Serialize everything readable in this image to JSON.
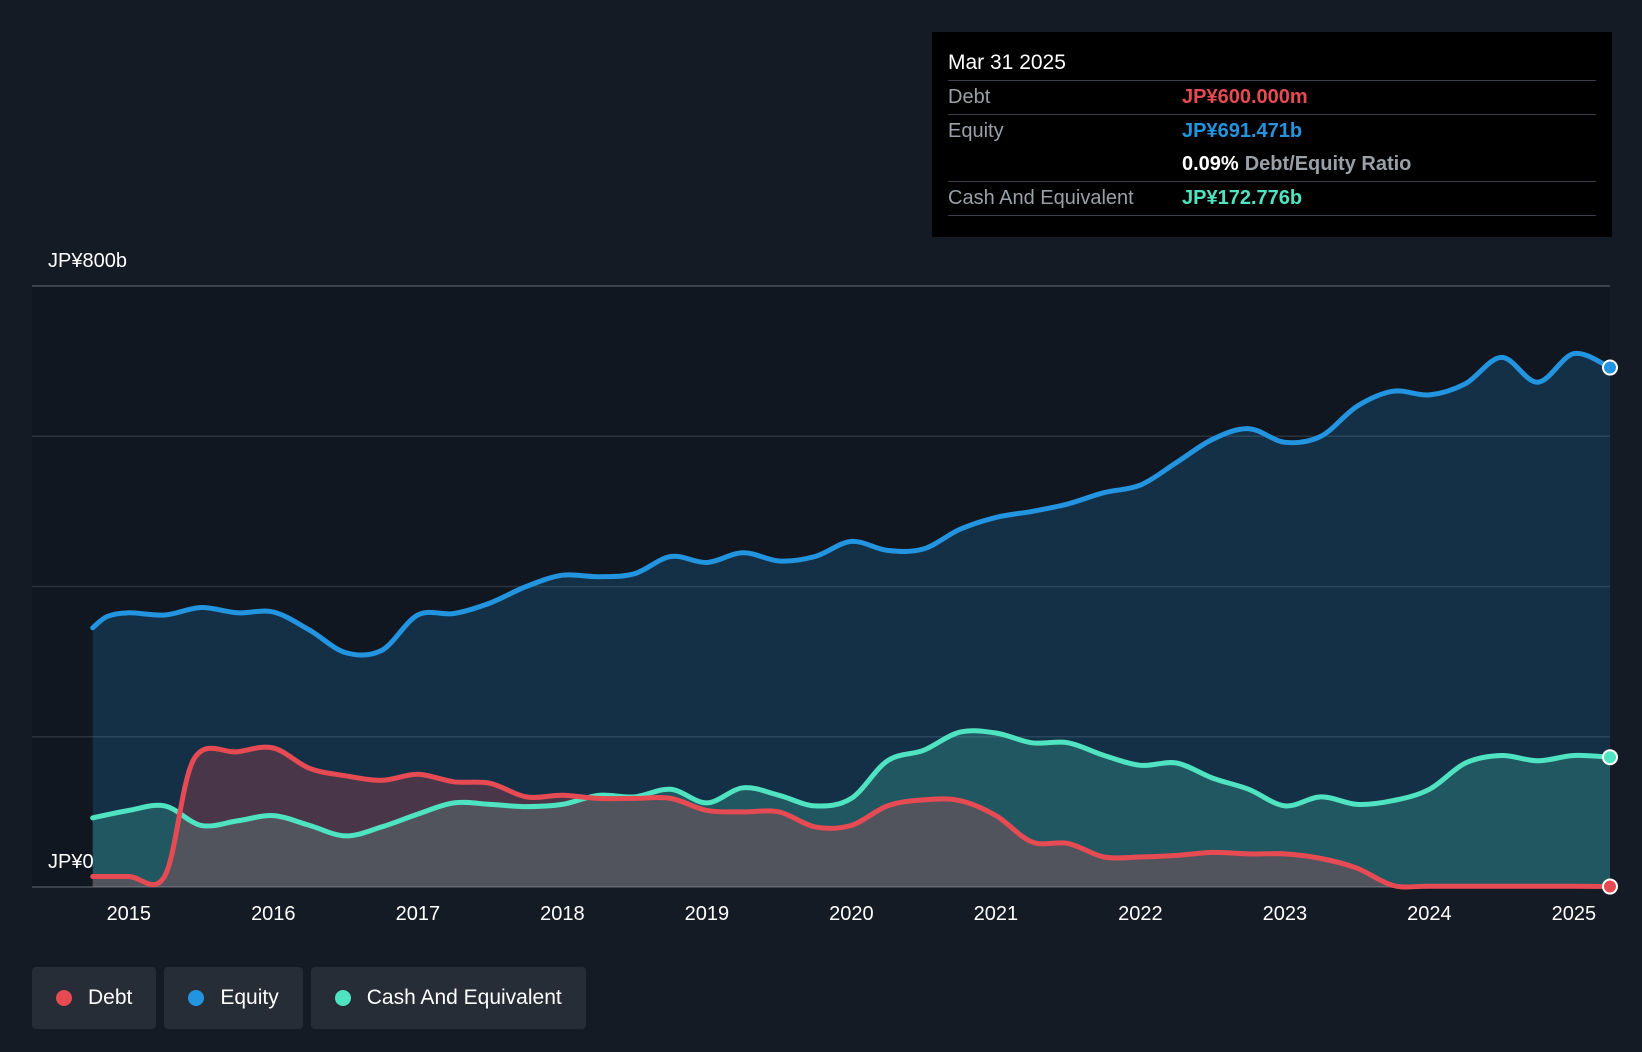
{
  "chart_data": {
    "type": "area",
    "title": "",
    "y_axis": {
      "top_label": "JP¥800b",
      "bottom_label": "JP¥0",
      "min": 0,
      "max": 800,
      "unit": "JP¥ billions"
    },
    "x_ticks": [
      "2015",
      "2016",
      "2017",
      "2018",
      "2019",
      "2020",
      "2021",
      "2022",
      "2023",
      "2024",
      "2025"
    ],
    "x_range": [
      2014.33,
      2025.25
    ],
    "series": [
      {
        "name": "Equity",
        "color": "#2394df",
        "points": [
          [
            2014.75,
            345
          ],
          [
            2014.85,
            360
          ],
          [
            2015.0,
            365
          ],
          [
            2015.25,
            362
          ],
          [
            2015.5,
            372
          ],
          [
            2015.75,
            365
          ],
          [
            2016.0,
            366
          ],
          [
            2016.25,
            342
          ],
          [
            2016.5,
            312
          ],
          [
            2016.75,
            315
          ],
          [
            2017.0,
            362
          ],
          [
            2017.25,
            364
          ],
          [
            2017.5,
            378
          ],
          [
            2017.75,
            400
          ],
          [
            2018.0,
            415
          ],
          [
            2018.25,
            413
          ],
          [
            2018.5,
            417
          ],
          [
            2018.75,
            440
          ],
          [
            2019.0,
            432
          ],
          [
            2019.25,
            445
          ],
          [
            2019.5,
            434
          ],
          [
            2019.75,
            440
          ],
          [
            2020.0,
            460
          ],
          [
            2020.25,
            448
          ],
          [
            2020.5,
            450
          ],
          [
            2020.75,
            476
          ],
          [
            2021.0,
            492
          ],
          [
            2021.25,
            500
          ],
          [
            2021.5,
            510
          ],
          [
            2021.75,
            525
          ],
          [
            2022.0,
            535
          ],
          [
            2022.25,
            565
          ],
          [
            2022.5,
            596
          ],
          [
            2022.75,
            610
          ],
          [
            2023.0,
            592
          ],
          [
            2023.25,
            600
          ],
          [
            2023.5,
            640
          ],
          [
            2023.75,
            660
          ],
          [
            2024.0,
            655
          ],
          [
            2024.25,
            670
          ],
          [
            2024.5,
            705
          ],
          [
            2024.75,
            672
          ],
          [
            2025.0,
            710
          ],
          [
            2025.25,
            691.471
          ]
        ]
      },
      {
        "name": "Cash And Equivalent",
        "color": "#50e3c2",
        "points": [
          [
            2014.75,
            92
          ],
          [
            2015.0,
            102
          ],
          [
            2015.25,
            108
          ],
          [
            2015.5,
            82
          ],
          [
            2015.75,
            88
          ],
          [
            2016.0,
            95
          ],
          [
            2016.25,
            82
          ],
          [
            2016.5,
            68
          ],
          [
            2016.75,
            80
          ],
          [
            2017.0,
            97
          ],
          [
            2017.25,
            112
          ],
          [
            2017.5,
            110
          ],
          [
            2017.75,
            107
          ],
          [
            2018.0,
            110
          ],
          [
            2018.25,
            122
          ],
          [
            2018.5,
            120
          ],
          [
            2018.75,
            130
          ],
          [
            2019.0,
            112
          ],
          [
            2019.25,
            132
          ],
          [
            2019.5,
            122
          ],
          [
            2019.75,
            108
          ],
          [
            2020.0,
            118
          ],
          [
            2020.25,
            168
          ],
          [
            2020.5,
            182
          ],
          [
            2020.75,
            206
          ],
          [
            2021.0,
            205
          ],
          [
            2021.25,
            192
          ],
          [
            2021.5,
            192
          ],
          [
            2021.75,
            175
          ],
          [
            2022.0,
            162
          ],
          [
            2022.25,
            165
          ],
          [
            2022.5,
            145
          ],
          [
            2022.75,
            130
          ],
          [
            2023.0,
            108
          ],
          [
            2023.25,
            120
          ],
          [
            2023.5,
            110
          ],
          [
            2023.75,
            115
          ],
          [
            2024.0,
            130
          ],
          [
            2024.25,
            165
          ],
          [
            2024.5,
            175
          ],
          [
            2024.75,
            168
          ],
          [
            2025.0,
            175
          ],
          [
            2025.25,
            172.776
          ]
        ]
      },
      {
        "name": "Debt",
        "color": "#e64b54",
        "points": [
          [
            2014.75,
            14
          ],
          [
            2015.0,
            14
          ],
          [
            2015.25,
            15
          ],
          [
            2015.45,
            170
          ],
          [
            2015.75,
            180
          ],
          [
            2016.0,
            185
          ],
          [
            2016.25,
            158
          ],
          [
            2016.5,
            148
          ],
          [
            2016.75,
            142
          ],
          [
            2017.0,
            150
          ],
          [
            2017.25,
            140
          ],
          [
            2017.5,
            138
          ],
          [
            2017.75,
            120
          ],
          [
            2018.0,
            122
          ],
          [
            2018.25,
            118
          ],
          [
            2018.5,
            118
          ],
          [
            2018.75,
            118
          ],
          [
            2019.0,
            102
          ],
          [
            2019.25,
            100
          ],
          [
            2019.5,
            100
          ],
          [
            2019.75,
            80
          ],
          [
            2020.0,
            82
          ],
          [
            2020.25,
            108
          ],
          [
            2020.5,
            116
          ],
          [
            2020.75,
            115
          ],
          [
            2021.0,
            95
          ],
          [
            2021.25,
            60
          ],
          [
            2021.5,
            58
          ],
          [
            2021.75,
            40
          ],
          [
            2022.0,
            40
          ],
          [
            2022.25,
            42
          ],
          [
            2022.5,
            46
          ],
          [
            2022.75,
            44
          ],
          [
            2023.0,
            44
          ],
          [
            2023.25,
            38
          ],
          [
            2023.5,
            25
          ],
          [
            2023.75,
            2
          ],
          [
            2024.0,
            1
          ],
          [
            2024.5,
            1
          ],
          [
            2025.0,
            1
          ],
          [
            2025.25,
            0.6
          ]
        ]
      }
    ],
    "legend_position": "bottom-left"
  },
  "tooltip": {
    "date": "Mar 31 2025",
    "debt_label": "Debt",
    "debt_value": "JP¥600.000m",
    "equity_label": "Equity",
    "equity_value": "JP¥691.471b",
    "ratio_value": "0.09%",
    "ratio_label": "Debt/Equity Ratio",
    "cash_label": "Cash And Equivalent",
    "cash_value": "JP¥172.776b"
  },
  "legend": [
    {
      "label": "Debt",
      "color": "#e64b54"
    },
    {
      "label": "Equity",
      "color": "#2394df"
    },
    {
      "label": "Cash And Equivalent",
      "color": "#50e3c2"
    }
  ],
  "colors": {
    "debt": "#e64b54",
    "equity": "#2394df",
    "cash": "#50e3c2"
  }
}
